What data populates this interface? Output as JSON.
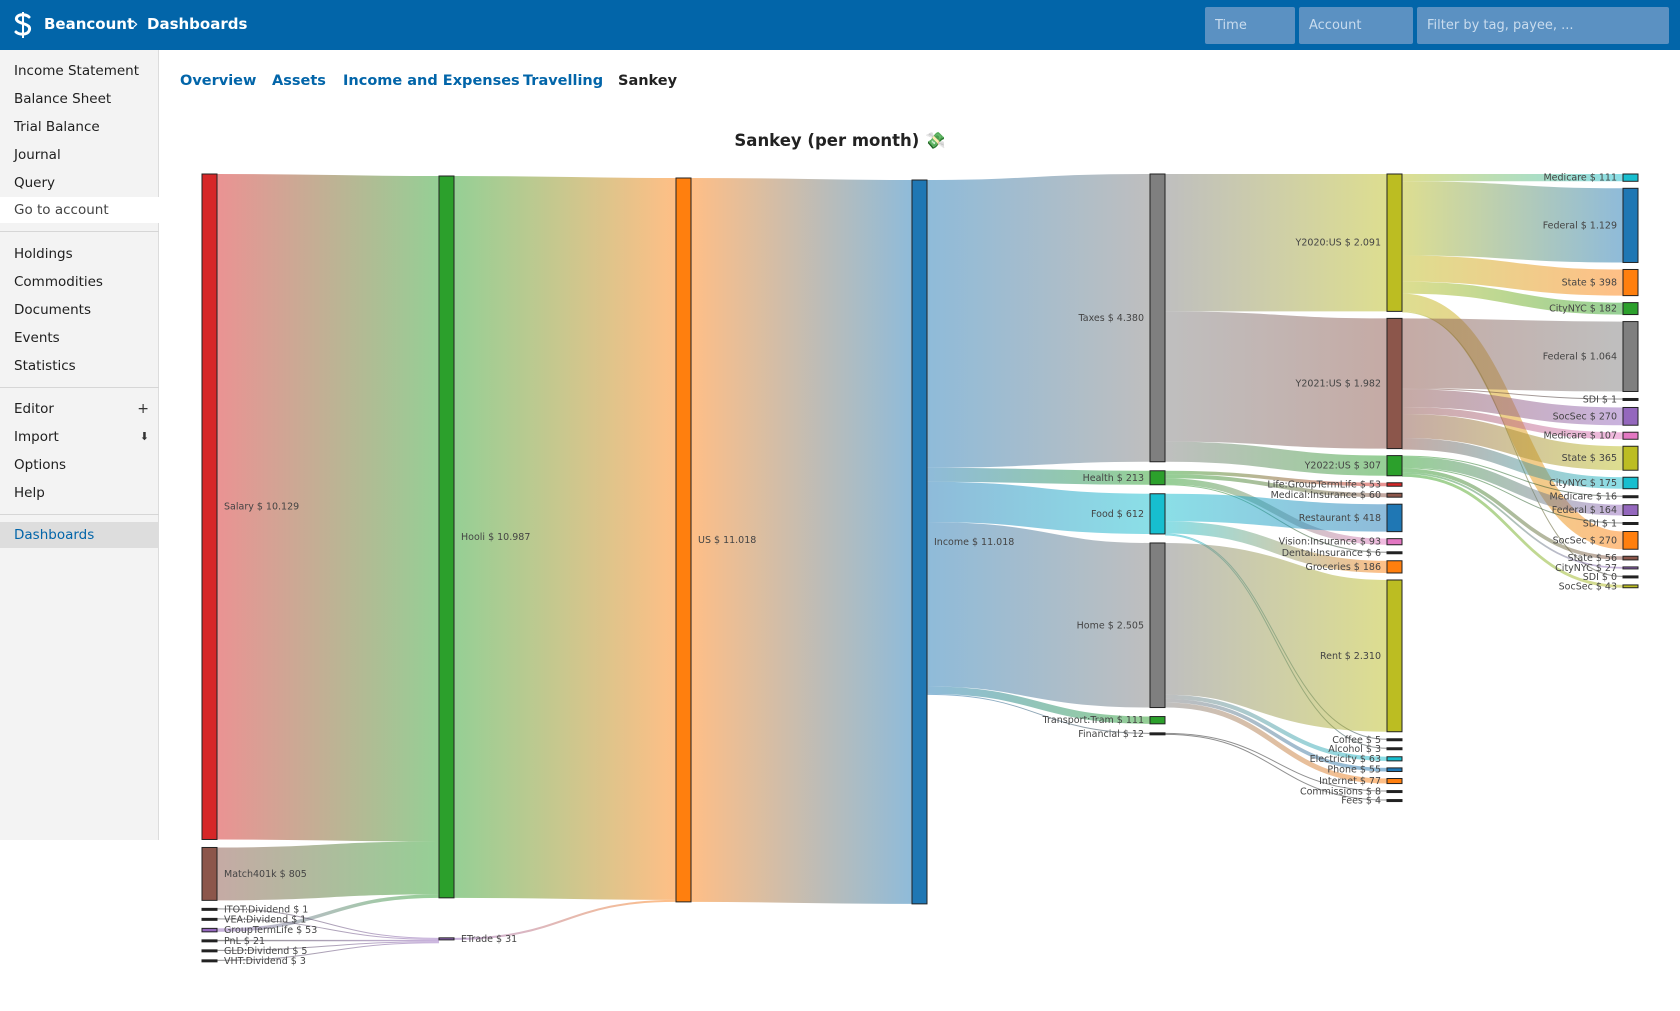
{
  "header": {
    "brand": "Beancount",
    "separator": "›",
    "page": "Dashboards",
    "time_placeholder": "Time",
    "account_placeholder": "Account",
    "filter_placeholder": "Filter by tag, payee, ..."
  },
  "sidebar": {
    "reports": [
      "Income Statement",
      "Balance Sheet",
      "Trial Balance",
      "Journal",
      "Query"
    ],
    "goto": "Go to account",
    "tools": [
      "Holdings",
      "Commodities",
      "Documents",
      "Events",
      "Statistics"
    ],
    "editor": "Editor",
    "editor_icon": "plus-icon",
    "import": "Import",
    "import_icon": "download-icon",
    "options": "Options",
    "help": "Help",
    "dashboards": "Dashboards"
  },
  "tabs": [
    "Overview",
    "Assets",
    "Income and Expenses",
    "Travelling",
    "Sankey"
  ],
  "active_tab": "Sankey",
  "chart_title": "Sankey (per month) 💸",
  "chart_data": {
    "type": "sankey",
    "title": "Sankey (per month) 💸",
    "colors": {
      "red": "#d62728",
      "brown": "#8c564b",
      "green": "#2ca02c",
      "orange": "#ff7f0e",
      "blue": "#1f77b4",
      "gray": "#7f7f7f",
      "olive": "#bcbd22",
      "cyan": "#17becf",
      "pink": "#e377c2",
      "purple": "#9467bd",
      "black": "#222222"
    },
    "nodes": [
      {
        "id": "salary",
        "label": "Salary $ 10.129",
        "value": 10129,
        "color": "red"
      },
      {
        "id": "match",
        "label": "Match401k $ 805",
        "value": 805,
        "color": "brown"
      },
      {
        "id": "itot",
        "label": "ITOT:Dividend $ 1",
        "value": 1,
        "color": "black"
      },
      {
        "id": "vea",
        "label": "VEA:Dividend $ 1",
        "value": 1,
        "color": "black"
      },
      {
        "id": "gtl",
        "label": "GroupTermLife $ 53",
        "value": 53,
        "color": "purple"
      },
      {
        "id": "pnl",
        "label": "PnL $ 21",
        "value": 21,
        "color": "black"
      },
      {
        "id": "gld",
        "label": "GLD:Dividend $ 5",
        "value": 5,
        "color": "black"
      },
      {
        "id": "vht",
        "label": "VHT:Dividend $ 3",
        "value": 3,
        "color": "black"
      },
      {
        "id": "hooli",
        "label": "Hooli $ 10.987",
        "value": 10987,
        "color": "green"
      },
      {
        "id": "etrade",
        "label": "ETrade $ 31",
        "value": 31,
        "color": "purple"
      },
      {
        "id": "us",
        "label": "US $ 11.018",
        "value": 11018,
        "color": "orange"
      },
      {
        "id": "income",
        "label": "Income $ 11.018",
        "value": 11018,
        "color": "blue"
      },
      {
        "id": "taxes",
        "label": "Taxes $ 4.380",
        "value": 4380,
        "color": "gray"
      },
      {
        "id": "health",
        "label": "Health $ 213",
        "value": 213,
        "color": "green"
      },
      {
        "id": "food",
        "label": "Food $ 612",
        "value": 612,
        "color": "cyan"
      },
      {
        "id": "home",
        "label": "Home $ 2.505",
        "value": 2505,
        "color": "gray"
      },
      {
        "id": "tram",
        "label": "Transport:Tram $ 111",
        "value": 111,
        "color": "green"
      },
      {
        "id": "financial",
        "label": "Financial $ 12",
        "value": 12,
        "color": "black"
      },
      {
        "id": "y2020",
        "label": "Y2020:US $ 2.091",
        "value": 2091,
        "color": "olive"
      },
      {
        "id": "y2021",
        "label": "Y2021:US $ 1.982",
        "value": 1982,
        "color": "brown"
      },
      {
        "id": "y2022",
        "label": "Y2022:US $ 307",
        "value": 307,
        "color": "green"
      },
      {
        "id": "lifegtl",
        "label": "Life:GroupTermLife $ 53",
        "value": 53,
        "color": "red"
      },
      {
        "id": "medins",
        "label": "Medical:Insurance $ 60",
        "value": 60,
        "color": "brown"
      },
      {
        "id": "restaurant",
        "label": "Restaurant $ 418",
        "value": 418,
        "color": "blue"
      },
      {
        "id": "visins",
        "label": "Vision:Insurance $ 93",
        "value": 93,
        "color": "pink"
      },
      {
        "id": "dentins",
        "label": "Dental:Insurance $ 6",
        "value": 6,
        "color": "black"
      },
      {
        "id": "groceries",
        "label": "Groceries $ 186",
        "value": 186,
        "color": "orange"
      },
      {
        "id": "rent",
        "label": "Rent $ 2.310",
        "value": 2310,
        "color": "olive"
      },
      {
        "id": "coffee",
        "label": "Coffee $ 5",
        "value": 5,
        "color": "black"
      },
      {
        "id": "alcohol",
        "label": "Alcohol $ 3",
        "value": 3,
        "color": "black"
      },
      {
        "id": "electricity",
        "label": "Electricity $ 63",
        "value": 63,
        "color": "cyan"
      },
      {
        "id": "phone",
        "label": "Phone $ 55",
        "value": 55,
        "color": "blue"
      },
      {
        "id": "internet",
        "label": "Internet $ 77",
        "value": 77,
        "color": "orange"
      },
      {
        "id": "commissions",
        "label": "Commissions $ 8",
        "value": 8,
        "color": "black"
      },
      {
        "id": "fees",
        "label": "Fees $ 4",
        "value": 4,
        "color": "black"
      },
      {
        "id": "med20",
        "label": "Medicare $ 111",
        "value": 111,
        "color": "cyan"
      },
      {
        "id": "fed20",
        "label": "Federal $ 1.129",
        "value": 1129,
        "color": "blue"
      },
      {
        "id": "state20",
        "label": "State $ 398",
        "value": 398,
        "color": "orange"
      },
      {
        "id": "nyc20",
        "label": "CityNYC $ 182",
        "value": 182,
        "color": "green"
      },
      {
        "id": "fed21",
        "label": "Federal $ 1.064",
        "value": 1064,
        "color": "gray"
      },
      {
        "id": "sdi21",
        "label": "SDI $ 1",
        "value": 1,
        "color": "black"
      },
      {
        "id": "soc21",
        "label": "SocSec $ 270",
        "value": 270,
        "color": "purple"
      },
      {
        "id": "med21",
        "label": "Medicare $ 107",
        "value": 107,
        "color": "pink"
      },
      {
        "id": "state21",
        "label": "State $ 365",
        "value": 365,
        "color": "olive"
      },
      {
        "id": "nyc21",
        "label": "CityNYC $ 175",
        "value": 175,
        "color": "cyan"
      },
      {
        "id": "med22",
        "label": "Medicare $ 16",
        "value": 16,
        "color": "black"
      },
      {
        "id": "fed22",
        "label": "Federal $ 164",
        "value": 164,
        "color": "purple"
      },
      {
        "id": "sdi22",
        "label": "SDI $ 1",
        "value": 1,
        "color": "black"
      },
      {
        "id": "soc20",
        "label": "SocSec $ 270",
        "value": 270,
        "color": "orange"
      },
      {
        "id": "state22",
        "label": "State $ 56",
        "value": 56,
        "color": "brown"
      },
      {
        "id": "nyc22",
        "label": "CityNYC $ 27",
        "value": 27,
        "color": "purple"
      },
      {
        "id": "sdi20",
        "label": "SDI $ 0",
        "value": 0,
        "color": "black"
      },
      {
        "id": "soc22",
        "label": "SocSec $ 43",
        "value": 43,
        "color": "olive"
      }
    ],
    "links": [
      {
        "source": "salary",
        "target": "hooli",
        "value": 10129
      },
      {
        "source": "match",
        "target": "hooli",
        "value": 805
      },
      {
        "source": "gtl",
        "target": "hooli",
        "value": 53
      },
      {
        "source": "itot",
        "target": "etrade",
        "value": 1
      },
      {
        "source": "vea",
        "target": "etrade",
        "value": 1
      },
      {
        "source": "pnl",
        "target": "etrade",
        "value": 21
      },
      {
        "source": "gld",
        "target": "etrade",
        "value": 5
      },
      {
        "source": "vht",
        "target": "etrade",
        "value": 3
      },
      {
        "source": "hooli",
        "target": "us",
        "value": 10987
      },
      {
        "source": "etrade",
        "target": "us",
        "value": 31
      },
      {
        "source": "us",
        "target": "income",
        "value": 11018
      },
      {
        "source": "income",
        "target": "taxes",
        "value": 4380
      },
      {
        "source": "income",
        "target": "health",
        "value": 213
      },
      {
        "source": "income",
        "target": "food",
        "value": 612
      },
      {
        "source": "income",
        "target": "home",
        "value": 2505
      },
      {
        "source": "income",
        "target": "tram",
        "value": 111
      },
      {
        "source": "income",
        "target": "financial",
        "value": 12
      },
      {
        "source": "taxes",
        "target": "y2020",
        "value": 2091
      },
      {
        "source": "taxes",
        "target": "y2021",
        "value": 1982
      },
      {
        "source": "taxes",
        "target": "y2022",
        "value": 307
      },
      {
        "source": "health",
        "target": "lifegtl",
        "value": 53
      },
      {
        "source": "health",
        "target": "medins",
        "value": 60
      },
      {
        "source": "health",
        "target": "visins",
        "value": 93
      },
      {
        "source": "health",
        "target": "dentins",
        "value": 6
      },
      {
        "source": "food",
        "target": "restaurant",
        "value": 418
      },
      {
        "source": "food",
        "target": "groceries",
        "value": 186
      },
      {
        "source": "food",
        "target": "coffee",
        "value": 5
      },
      {
        "source": "food",
        "target": "alcohol",
        "value": 3
      },
      {
        "source": "home",
        "target": "rent",
        "value": 2310
      },
      {
        "source": "home",
        "target": "electricity",
        "value": 63
      },
      {
        "source": "home",
        "target": "phone",
        "value": 55
      },
      {
        "source": "home",
        "target": "internet",
        "value": 77
      },
      {
        "source": "financial",
        "target": "commissions",
        "value": 8
      },
      {
        "source": "financial",
        "target": "fees",
        "value": 4
      },
      {
        "source": "y2020",
        "target": "med20",
        "value": 111
      },
      {
        "source": "y2020",
        "target": "fed20",
        "value": 1129
      },
      {
        "source": "y2020",
        "target": "state20",
        "value": 398
      },
      {
        "source": "y2020",
        "target": "nyc20",
        "value": 182
      },
      {
        "source": "y2020",
        "target": "soc20",
        "value": 270
      },
      {
        "source": "y2020",
        "target": "sdi20",
        "value": 0
      },
      {
        "source": "y2021",
        "target": "fed21",
        "value": 1064
      },
      {
        "source": "y2021",
        "target": "sdi21",
        "value": 1
      },
      {
        "source": "y2021",
        "target": "soc21",
        "value": 270
      },
      {
        "source": "y2021",
        "target": "med21",
        "value": 107
      },
      {
        "source": "y2021",
        "target": "state21",
        "value": 365
      },
      {
        "source": "y2021",
        "target": "nyc21",
        "value": 175
      },
      {
        "source": "y2022",
        "target": "med22",
        "value": 16
      },
      {
        "source": "y2022",
        "target": "fed22",
        "value": 164
      },
      {
        "source": "y2022",
        "target": "sdi22",
        "value": 1
      },
      {
        "source": "y2022",
        "target": "state22",
        "value": 56
      },
      {
        "source": "y2022",
        "target": "nyc22",
        "value": 27
      },
      {
        "source": "y2022",
        "target": "soc22",
        "value": 43
      }
    ]
  }
}
